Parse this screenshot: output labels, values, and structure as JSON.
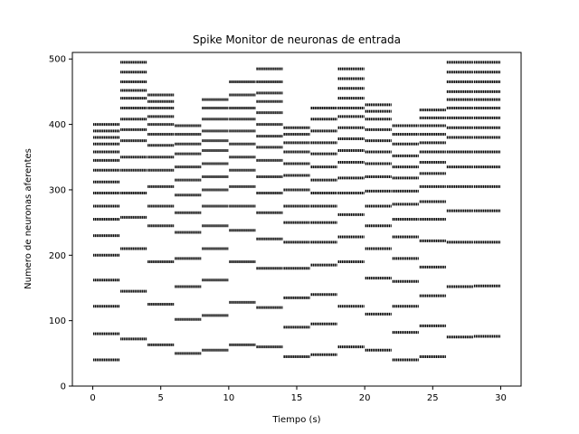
{
  "chart_data": {
    "type": "scatter",
    "title": "Spike Monitor de neuronas de entrada",
    "xlabel": "Tiempo (s)",
    "ylabel": "Numero de neuronas aferentes",
    "xlim": [
      -1.5,
      31.5
    ],
    "ylim": [
      0,
      510
    ],
    "xticks": [
      0,
      5,
      10,
      15,
      20,
      25,
      30
    ],
    "yticks": [
      0,
      100,
      200,
      300,
      400,
      500
    ],
    "grid": false,
    "marker_color": "#000000",
    "series": [
      {
        "bands": [
          {
            "t0": 0,
            "t1": 2,
            "y": [
              40,
              80,
              122,
              162,
              200,
              230,
              255,
              275,
              295,
              312,
              330,
              345,
              358,
              370,
              380,
              390,
              400
            ]
          },
          {
            "t0": 2,
            "t1": 4,
            "y": [
              72,
              145,
              210,
              258,
              295,
              330,
              350,
              375,
              392,
              408,
              425,
              440,
              452,
              465,
              480,
              495
            ]
          },
          {
            "t0": 4,
            "t1": 6,
            "y": [
              63,
              125,
              190,
              245,
              275,
              305,
              330,
              350,
              368,
              385,
              400,
              412,
              425,
              435,
              445
            ]
          },
          {
            "t0": 6,
            "t1": 8,
            "y": [
              50,
              102,
              152,
              195,
              235,
              265,
              292,
              315,
              335,
              355,
              370,
              385,
              398
            ]
          },
          {
            "t0": 8,
            "t1": 10,
            "y": [
              55,
              108,
              162,
              210,
              245,
              275,
              300,
              320,
              340,
              360,
              375,
              390,
              408,
              425,
              438
            ]
          },
          {
            "t0": 10,
            "t1": 12,
            "y": [
              63,
              128,
              190,
              238,
              275,
              305,
              330,
              350,
              370,
              390,
              408,
              425,
              445,
              465
            ]
          },
          {
            "t0": 12,
            "t1": 14,
            "y": [
              60,
              120,
              180,
              225,
              265,
              295,
              320,
              345,
              365,
              382,
              400,
              418,
              435,
              448,
              465,
              485
            ]
          },
          {
            "t0": 14,
            "t1": 16,
            "y": [
              45,
              90,
              135,
              180,
              220,
              250,
              275,
              300,
              322,
              340,
              358,
              372,
              385,
              395
            ]
          },
          {
            "t0": 16,
            "t1": 18,
            "y": [
              48,
              95,
              140,
              185,
              220,
              250,
              275,
              295,
              315,
              335,
              355,
              372,
              390,
              408,
              425
            ]
          },
          {
            "t0": 18,
            "t1": 20,
            "y": [
              60,
              122,
              190,
              228,
              262,
              295,
              318,
              342,
              360,
              378,
              395,
              412,
              425,
              440,
              455,
              470,
              485
            ]
          },
          {
            "t0": 20,
            "t1": 22,
            "y": [
              55,
              110,
              165,
              210,
              245,
              275,
              298,
              320,
              340,
              358,
              375,
              392,
              408,
              420,
              430
            ]
          },
          {
            "t0": 22,
            "t1": 24,
            "y": [
              40,
              82,
              122,
              160,
              195,
              228,
              255,
              278,
              298,
              318,
              335,
              352,
              370,
              385,
              398
            ]
          },
          {
            "t0": 24,
            "t1": 26,
            "y": [
              45,
              92,
              138,
              182,
              222,
              255,
              282,
              305,
              325,
              342,
              358,
              372,
              385,
              398,
              410,
              422
            ]
          },
          {
            "t0": 26,
            "t1": 28,
            "y": [
              75,
              152,
              220,
              268,
              305,
              335,
              358,
              380,
              395,
              410,
              425,
              438,
              450,
              465,
              480,
              495
            ]
          },
          {
            "t0": 28,
            "t1": 30,
            "y": [
              76,
              153,
              220,
              268,
              305,
              335,
              358,
              380,
              395,
              410,
              425,
              438,
              450,
              465,
              480,
              495
            ]
          }
        ]
      }
    ]
  }
}
